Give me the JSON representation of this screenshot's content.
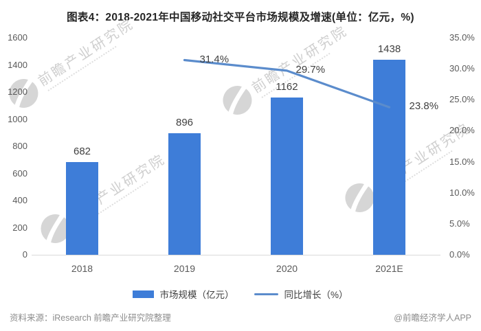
{
  "title": "图表4：2018-2021年中国移动社交平台市场规模及增速(单位：亿元，%)",
  "chart_data": {
    "type": "bar",
    "subtype": "bar-line-combo",
    "categories": [
      "2018",
      "2019",
      "2020",
      "2021E"
    ],
    "series": [
      {
        "name": "市场规模（亿元）",
        "type": "bar",
        "axis": "left",
        "values": [
          682,
          896,
          1162,
          1438
        ],
        "data_labels": [
          "682",
          "896",
          "1162",
          "1438"
        ]
      },
      {
        "name": "同比增长（%）",
        "type": "line",
        "axis": "right",
        "values": [
          null,
          31.4,
          29.7,
          23.8
        ],
        "data_labels": [
          "",
          "31.4%",
          "29.7%",
          "23.8%"
        ]
      }
    ],
    "left_axis": {
      "min": 0,
      "max": 1600,
      "step": 200,
      "tick_labels_top_to_bottom": [
        "1600",
        "1400",
        "1200",
        "1000",
        "800",
        "600",
        "400",
        "200",
        "0"
      ]
    },
    "right_axis": {
      "min": 0,
      "max": 35,
      "step": 5,
      "tick_labels_top_to_bottom": [
        "35.0%",
        "30.0%",
        "25.0%",
        "20.0%",
        "15.0%",
        "10.0%",
        "5.0%",
        "0.0%"
      ]
    },
    "grid": false,
    "legend_position": "bottom"
  },
  "legend": {
    "items": [
      {
        "label": "市场规模（亿元）",
        "swatch": "bar"
      },
      {
        "label": "同比增长（%）",
        "swatch": "line"
      }
    ]
  },
  "watermark": {
    "text": "前瞻产业研究院"
  },
  "footer": {
    "source": "资料来源：iResearch 前瞻产业研究院整理",
    "credit": "@前瞻经济学人APP"
  },
  "colors": {
    "bar": "#3E7DD8",
    "line": "#5B8CCC",
    "title_text": "#262626",
    "axis_text": "#595959",
    "data_label_text": "#404040",
    "footer_text": "#8C8C8C",
    "axis_line": "#D9D9D9",
    "watermark": "#CFCFCF",
    "watermark_logo": "#D6D6D6"
  }
}
